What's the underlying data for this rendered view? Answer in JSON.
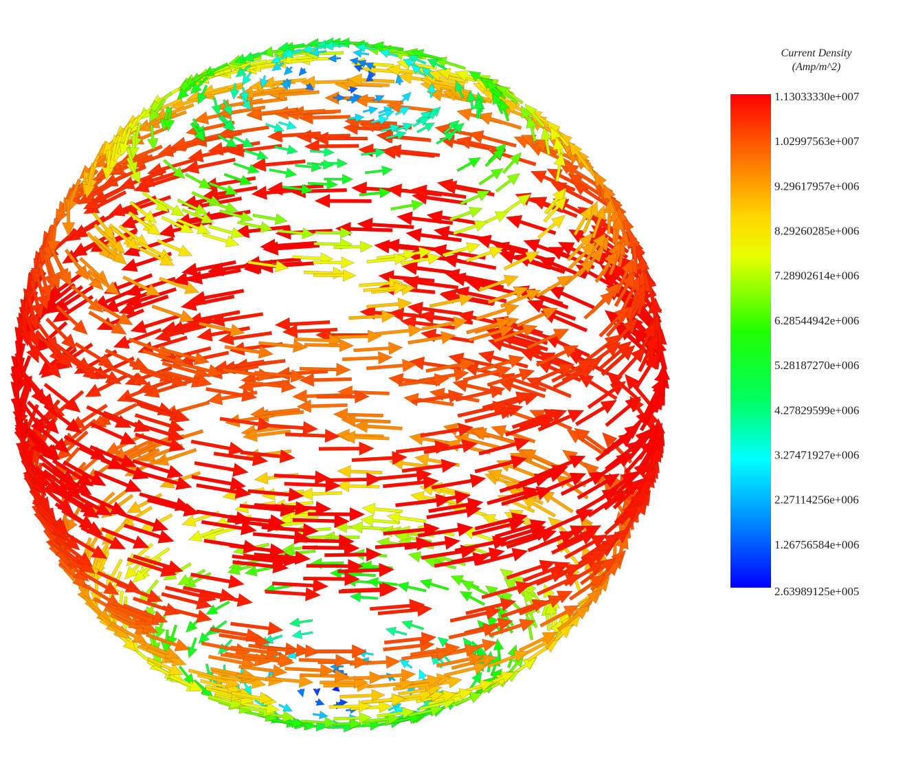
{
  "legend": {
    "title": "Current Density",
    "unit": "(Amp/m^2)",
    "labels": [
      "1.13033330e+007",
      "1.02997563e+007",
      "9.29617957e+006",
      "8.29260285e+006",
      "7.28902614e+006",
      "6.28544942e+006",
      "5.28187270e+006",
      "4.27829599e+006",
      "3.27471927e+006",
      "2.27114256e+006",
      "1.26756584e+006",
      "2.63989125e+005"
    ]
  }
}
